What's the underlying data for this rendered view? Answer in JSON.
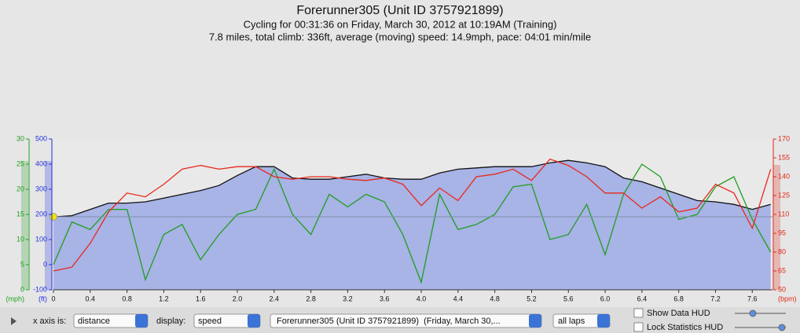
{
  "chart_data": {
    "type": "line",
    "title": "Forerunner305 (Unit ID 3757921899)",
    "subtitles": [
      "Cycling for 00:31:36 on Friday, March 30, 2012 at 10:19AM (Training)",
      "7.8 miles, total climb: 336ft, average (moving) speed: 14.9mph, pace: 04:01 min/mile"
    ],
    "x": [
      0,
      0.2,
      0.4,
      0.6,
      0.8,
      1.0,
      1.2,
      1.4,
      1.6,
      1.8,
      2.0,
      2.2,
      2.4,
      2.6,
      2.8,
      3.0,
      3.2,
      3.4,
      3.6,
      3.8,
      4.0,
      4.2,
      4.4,
      4.6,
      4.8,
      5.0,
      5.2,
      5.4,
      5.6,
      5.8,
      6.0,
      6.2,
      6.4,
      6.6,
      6.8,
      7.0,
      7.2,
      7.4,
      7.6,
      7.8
    ],
    "xlim": [
      0,
      7.82
    ],
    "xticks": [
      0,
      0.4,
      0.8,
      1.2,
      1.6,
      {
        "value": 2,
        "label": "2.0"
      },
      2.4,
      2.8,
      3.2,
      3.6,
      {
        "value": 4,
        "label": "4.0"
      },
      4.4,
      4.8,
      5.2,
      5.6,
      {
        "value": 6,
        "label": "6.0"
      },
      6.4,
      6.8,
      7.2,
      7.6
    ],
    "ylabel": "(mph)",
    "ylim": [
      0,
      30
    ],
    "yticks": [
      0,
      5,
      10,
      15,
      20,
      25,
      30
    ],
    "ycolor": "#22a022",
    "y3label": "(ft)",
    "y3lim": [
      -100,
      500
    ],
    "y3ticks": [
      -100,
      0,
      100,
      200,
      300,
      400,
      500
    ],
    "y3color": "#2233dd",
    "y2label": "(bpm)",
    "y2lim": [
      50,
      170
    ],
    "y2ticks": [
      50,
      65,
      80,
      95,
      110,
      125,
      140,
      155,
      170
    ],
    "y2color": "#e02a1a",
    "series": [
      {
        "axis": "y3",
        "kind": "area",
        "color": "#111111",
        "fill": "#a8b3e6",
        "values": [
          190,
          195,
          220,
          245,
          245,
          250,
          265,
          280,
          295,
          315,
          355,
          390,
          390,
          345,
          340,
          340,
          350,
          360,
          345,
          340,
          340,
          365,
          380,
          385,
          390,
          390,
          390,
          405,
          415,
          405,
          390,
          345,
          330,
          305,
          280,
          255,
          250,
          240,
          220,
          240
        ]
      },
      {
        "axis": "y",
        "kind": "line",
        "color": "#1f9e1f",
        "values": [
          5,
          13.5,
          12,
          16,
          16,
          2,
          11,
          13,
          6,
          11,
          15,
          16,
          24,
          15,
          11,
          19,
          16.5,
          19,
          17.5,
          11,
          1.5,
          19,
          12,
          13,
          15,
          20.5,
          21,
          10,
          11,
          17,
          7,
          19,
          25,
          22.5,
          14,
          15,
          20.5,
          22.5,
          14,
          7.5
        ]
      },
      {
        "axis": "y2",
        "kind": "line",
        "color": "#e8281a",
        "values": [
          65,
          68,
          87,
          112,
          127,
          124,
          134,
          146,
          149,
          146,
          148,
          148,
          140,
          138,
          140,
          140,
          138,
          137,
          139,
          134,
          117,
          131,
          121,
          140,
          142,
          146,
          137,
          154,
          149,
          140,
          127,
          127,
          115,
          124,
          112,
          115,
          134,
          127,
          99,
          146
        ]
      }
    ]
  },
  "controls": {
    "x_axis_label": "x axis is:",
    "x_axis_value": "distance",
    "display_label": "display:",
    "display_value": "speed",
    "device": "Forerunner305 (Unit ID 3757921899)  (Friday, March 30,...",
    "laps": "all laps",
    "show_data_hud": "Show Data HUD",
    "lock_statistics_hud": "Lock Statistics HUD"
  }
}
